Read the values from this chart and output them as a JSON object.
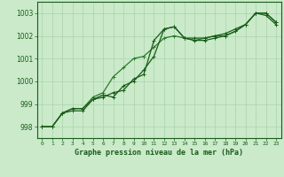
{
  "title": "Graphe pression niveau de la mer (hPa)",
  "bg_color": "#caeaca",
  "grid_color": "#aad4aa",
  "line_color1": "#1a5c1a",
  "line_color2": "#2d7a2d",
  "line_color3": "#1a5c1a",
  "xlim": [
    -0.5,
    23.5
  ],
  "ylim": [
    997.5,
    1003.5
  ],
  "yticks": [
    998,
    999,
    1000,
    1001,
    1002,
    1003
  ],
  "xticks": [
    0,
    1,
    2,
    3,
    4,
    5,
    6,
    7,
    8,
    9,
    10,
    11,
    12,
    13,
    14,
    15,
    16,
    17,
    18,
    19,
    20,
    21,
    22,
    23
  ],
  "series1": [
    998.0,
    998.0,
    998.6,
    998.7,
    998.7,
    999.2,
    999.3,
    999.5,
    999.6,
    1000.1,
    1000.3,
    1001.8,
    1002.3,
    1002.4,
    1001.9,
    1001.8,
    1001.8,
    1001.9,
    1002.0,
    1002.2,
    1002.5,
    1003.0,
    1003.0,
    1002.6
  ],
  "series2": [
    998.0,
    998.0,
    998.6,
    998.8,
    998.8,
    999.2,
    999.4,
    999.3,
    999.8,
    1000.0,
    1000.5,
    1001.1,
    1002.3,
    1002.4,
    1001.9,
    1001.9,
    1001.9,
    1002.0,
    1002.1,
    1002.3,
    1002.5,
    1003.0,
    1002.9,
    1002.5
  ],
  "series3": [
    998.0,
    998.0,
    998.6,
    998.8,
    998.8,
    999.3,
    999.5,
    1000.2,
    1000.6,
    1001.0,
    1001.1,
    1001.5,
    1001.9,
    1002.0,
    1001.9,
    1001.8,
    1001.9,
    1002.0,
    1002.0,
    1002.2,
    1002.5,
    1003.0,
    1003.0,
    1002.6
  ]
}
